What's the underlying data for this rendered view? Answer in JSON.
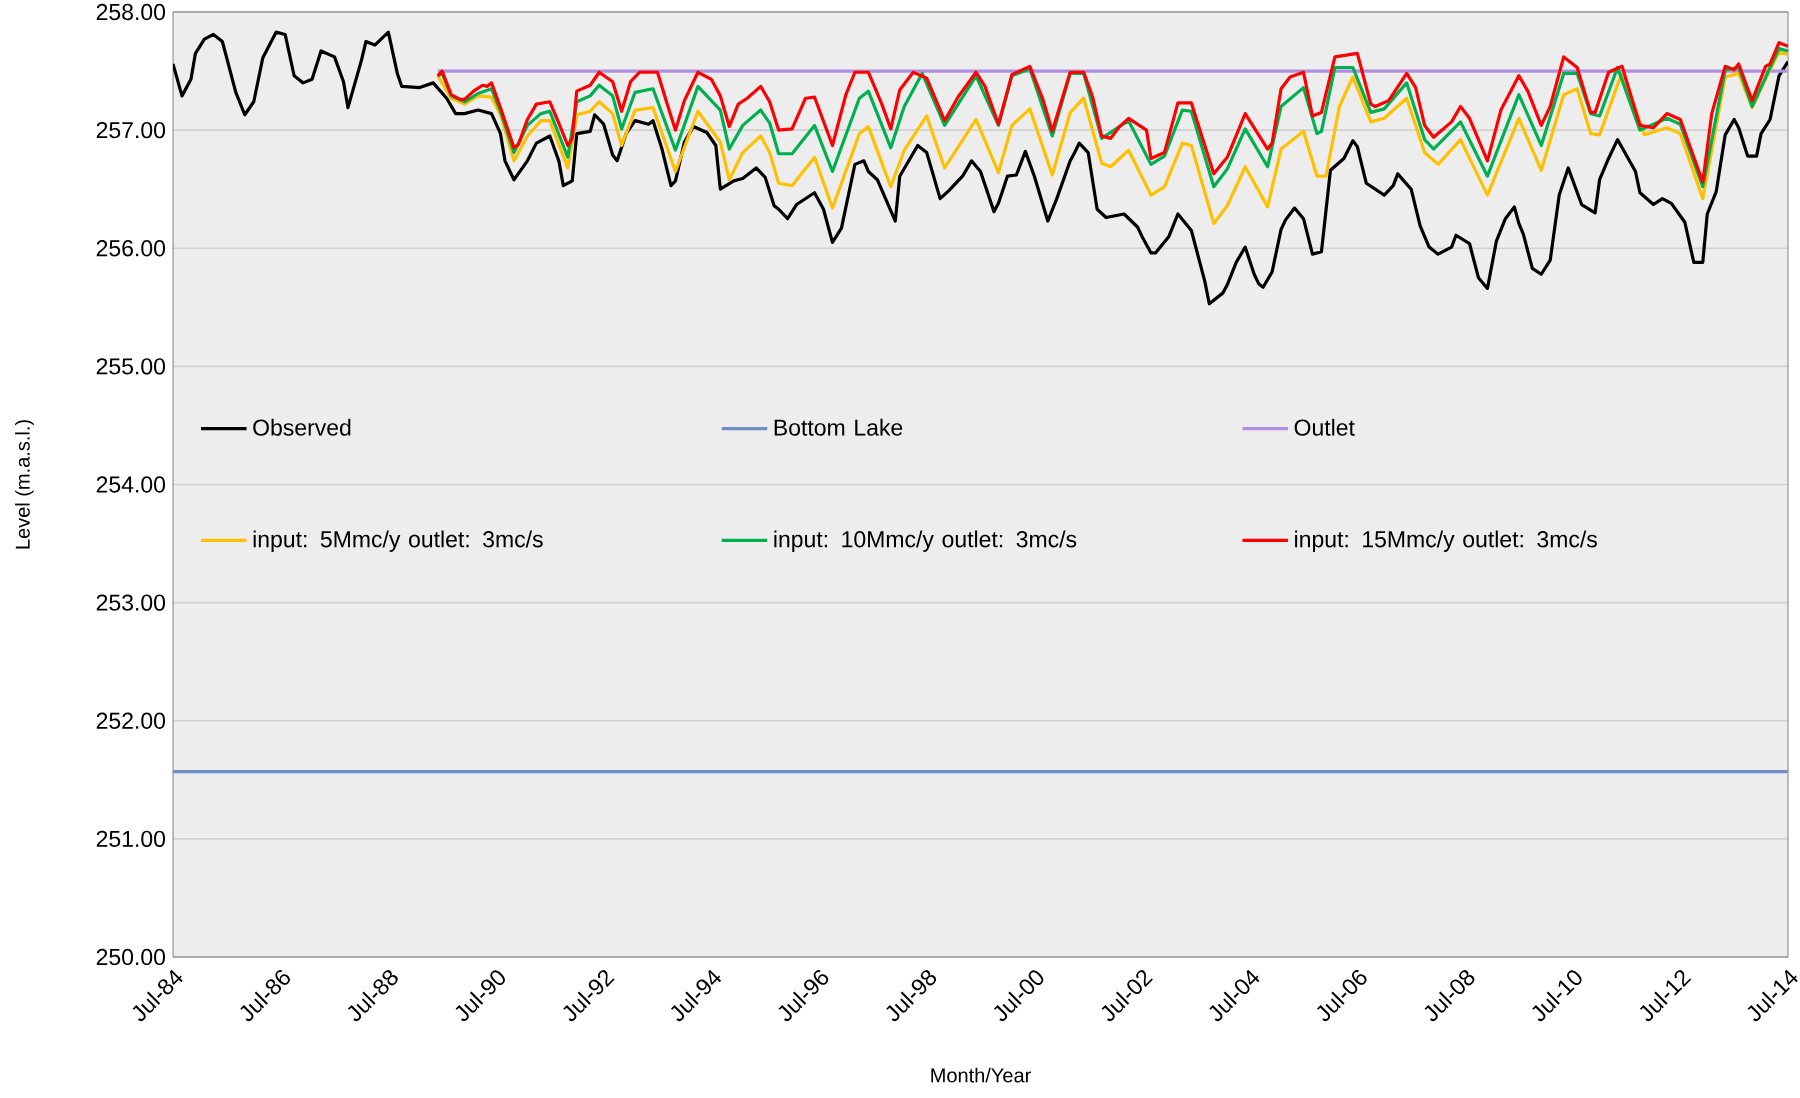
{
  "chart_data": {
    "type": "line",
    "xlabel": "Month/Year",
    "ylabel": "Level (m.a.s.l.)",
    "xlim": [
      "1984-07",
      "2014-07"
    ],
    "ylim": [
      250,
      258
    ],
    "xticks": [
      {
        "value": "1984-07",
        "label": "Jul-84"
      },
      {
        "value": "1986-07",
        "label": "Jul-86"
      },
      {
        "value": "1988-07",
        "label": "Jul-88"
      },
      {
        "value": "1990-07",
        "label": "Jul-90"
      },
      {
        "value": "1992-07",
        "label": "Jul-92"
      },
      {
        "value": "1994-07",
        "label": "Jul-94"
      },
      {
        "value": "1996-07",
        "label": "Jul-96"
      },
      {
        "value": "1998-07",
        "label": "Jul-98"
      },
      {
        "value": "2000-07",
        "label": "Jul-00"
      },
      {
        "value": "2002-07",
        "label": "Jul-02"
      },
      {
        "value": "2004-07",
        "label": "Jul-04"
      },
      {
        "value": "2006-07",
        "label": "Jul-06"
      },
      {
        "value": "2008-07",
        "label": "Jul-08"
      },
      {
        "value": "2010-07",
        "label": "Jul-10"
      },
      {
        "value": "2012-07",
        "label": "Jul-12"
      },
      {
        "value": "2014-07",
        "label": "Jul-14"
      }
    ],
    "yticks": [
      {
        "value": 250,
        "label": "250.00"
      },
      {
        "value": 251,
        "label": "251.00"
      },
      {
        "value": 252,
        "label": "252.00"
      },
      {
        "value": 253,
        "label": "253.00"
      },
      {
        "value": 254,
        "label": "254.00"
      },
      {
        "value": 255,
        "label": "255.00"
      },
      {
        "value": 256,
        "label": "256.00"
      },
      {
        "value": 257,
        "label": "257.00"
      },
      {
        "value": 258,
        "label": "258.00"
      }
    ],
    "grid": "y",
    "legend": "center",
    "marker": "none",
    "line_style": "solid",
    "series": [
      {
        "name": "Observed",
        "color": "#000000",
        "x": [
          "1984-07",
          "1984-09",
          "1984-11",
          "1984-12",
          "1985-02",
          "1985-04",
          "1985-06",
          "1985-09",
          "1985-11",
          "1986-01",
          "1986-03",
          "1986-06",
          "1986-08",
          "1986-10",
          "1986-12",
          "1987-02",
          "1987-04",
          "1987-07",
          "1987-09",
          "1987-10",
          "1988-01",
          "1988-02",
          "1988-04",
          "1988-07",
          "1988-09",
          "1988-10",
          "1989-02",
          "1989-05",
          "1989-08",
          "1989-10",
          "1989-12",
          "1990-03",
          "1990-06",
          "1990-08",
          "1990-09",
          "1990-11",
          "1991-02",
          "1991-04",
          "1991-07",
          "1991-09",
          "1991-10",
          "1991-12",
          "1992-01",
          "1992-04",
          "1992-05",
          "1992-07",
          "1992-09",
          "1992-10",
          "1992-12",
          "1993-02",
          "1993-05",
          "1993-06",
          "1993-08",
          "1993-10",
          "1993-11",
          "1994-01",
          "1994-03",
          "1994-06",
          "1994-08",
          "1994-09",
          "1994-12",
          "1995-02",
          "1995-05",
          "1995-07",
          "1995-09",
          "1995-10",
          "1995-12",
          "1996-02",
          "1996-06",
          "1996-08",
          "1996-10",
          "1996-12",
          "1997-03",
          "1997-05",
          "1997-06",
          "1997-08",
          "1997-12",
          "1998-01",
          "1998-03",
          "1998-05",
          "1998-07",
          "1998-10",
          "1998-12",
          "1999-03",
          "1999-05",
          "1999-07",
          "1999-10",
          "1999-11",
          "2000-01",
          "2000-03",
          "2000-05",
          "2000-07",
          "2000-10",
          "2000-12",
          "2001-03",
          "2001-04",
          "2001-05",
          "2001-07",
          "2001-09",
          "2001-11",
          "2002-03",
          "2002-06",
          "2002-07",
          "2002-09",
          "2002-10",
          "2003-01",
          "2003-03",
          "2003-06",
          "2003-09",
          "2003-10",
          "2004-01",
          "2004-02",
          "2004-04",
          "2004-06",
          "2004-08",
          "2004-09",
          "2004-10",
          "2004-12",
          "2005-02",
          "2005-03",
          "2005-05",
          "2005-07",
          "2005-09",
          "2005-11",
          "2006-01",
          "2006-04",
          "2006-06",
          "2006-07",
          "2006-09",
          "2006-11",
          "2007-01",
          "2007-03",
          "2007-04",
          "2007-07",
          "2007-09",
          "2007-11",
          "2008-01",
          "2008-04",
          "2008-05",
          "2008-08",
          "2008-10",
          "2008-12",
          "2009-02",
          "2009-04",
          "2009-06",
          "2009-07",
          "2009-08",
          "2009-10",
          "2009-12",
          "2010-02",
          "2010-04",
          "2010-06",
          "2010-09",
          "2010-12",
          "2011-01",
          "2011-03",
          "2011-05",
          "2011-09",
          "2011-10",
          "2012-01",
          "2012-03",
          "2012-05",
          "2012-08",
          "2012-10",
          "2012-12",
          "2013-01",
          "2013-03",
          "2013-05",
          "2013-07",
          "2013-08",
          "2013-10",
          "2013-12",
          "2014-01",
          "2014-03",
          "2014-05",
          "2014-07"
        ],
        "values": [
          257.56,
          257.29,
          257.43,
          257.65,
          257.77,
          257.81,
          257.75,
          257.32,
          257.13,
          257.24,
          257.61,
          257.83,
          257.81,
          257.46,
          257.4,
          257.43,
          257.67,
          257.62,
          257.41,
          257.19,
          257.59,
          257.75,
          257.72,
          257.83,
          257.48,
          257.37,
          257.36,
          257.4,
          257.27,
          257.14,
          257.14,
          257.17,
          257.14,
          256.97,
          256.74,
          256.58,
          256.74,
          256.89,
          256.95,
          256.74,
          256.53,
          256.57,
          256.97,
          256.99,
          257.13,
          257.05,
          256.79,
          256.74,
          256.97,
          257.08,
          257.05,
          257.08,
          256.84,
          256.53,
          256.57,
          256.9,
          257.03,
          256.98,
          256.87,
          256.5,
          256.57,
          256.59,
          256.68,
          256.6,
          256.36,
          256.33,
          256.25,
          256.37,
          256.47,
          256.33,
          256.05,
          256.17,
          256.71,
          256.74,
          256.65,
          256.58,
          256.23,
          256.61,
          256.74,
          256.87,
          256.81,
          256.42,
          256.49,
          256.61,
          256.74,
          256.65,
          256.31,
          256.38,
          256.61,
          256.62,
          256.82,
          256.61,
          256.23,
          256.42,
          256.74,
          256.81,
          256.89,
          256.81,
          256.33,
          256.26,
          256.29,
          256.18,
          256.1,
          255.96,
          255.96,
          256.1,
          256.29,
          256.15,
          255.72,
          255.53,
          255.62,
          255.69,
          255.88,
          256.01,
          255.78,
          255.7,
          255.67,
          255.8,
          256.16,
          256.24,
          256.34,
          256.25,
          255.95,
          255.97,
          256.66,
          256.76,
          256.91,
          256.86,
          256.55,
          256.5,
          256.45,
          256.53,
          256.63,
          256.5,
          256.19,
          256.01,
          255.95,
          256.01,
          256.11,
          256.04,
          255.75,
          255.66,
          256.06,
          256.25,
          256.35,
          256.21,
          256.12,
          255.83,
          255.78,
          255.9,
          256.45,
          256.68,
          256.37,
          256.3,
          256.58,
          256.76,
          256.92,
          256.65,
          256.47,
          256.37,
          256.42,
          256.38,
          256.22,
          255.88,
          255.88,
          256.29,
          256.48,
          256.96,
          257.09,
          257.02,
          256.78,
          256.78,
          256.97,
          257.09,
          257.46,
          257.58
        ]
      },
      {
        "name": "Bottom Lake",
        "color": "#6f8fc4",
        "x": [
          "1984-07",
          "2014-07"
        ],
        "values": [
          251.57,
          251.57
        ]
      },
      {
        "name": "Outlet",
        "color": "#b08ee0",
        "x": [
          "1989-06",
          "2014-07"
        ],
        "values": [
          257.5,
          257.5
        ]
      },
      {
        "name": "input: 5Mmc/y outlet: 3mc/s",
        "color": "#ffc000",
        "x": [
          "1989-06",
          "1989-09",
          "1989-12",
          "1990-03",
          "1990-06",
          "1990-08",
          "1990-11",
          "1991-02",
          "1991-05",
          "1991-07",
          "1991-11",
          "1992-01",
          "1992-04",
          "1992-06",
          "1992-09",
          "1992-11",
          "1993-02",
          "1993-06",
          "1993-11",
          "1994-04",
          "1994-09",
          "1994-11",
          "1995-02",
          "1995-06",
          "1995-08",
          "1995-10",
          "1996-01",
          "1996-06",
          "1996-10",
          "1997-04",
          "1997-06",
          "1997-11",
          "1998-02",
          "1998-07",
          "1998-11",
          "1999-06",
          "1999-11",
          "2000-02",
          "2000-06",
          "2000-11",
          "2001-03",
          "2001-06",
          "2001-10",
          "2001-12",
          "2002-04",
          "2002-09",
          "2002-12",
          "2003-04",
          "2003-06",
          "2003-11",
          "2004-02",
          "2004-06",
          "2004-11",
          "2005-02",
          "2005-07",
          "2005-10",
          "2005-12",
          "2006-03",
          "2006-06",
          "2006-10",
          "2007-01",
          "2007-06",
          "2007-10",
          "2008-01",
          "2008-06",
          "2008-12",
          "2009-07",
          "2009-12",
          "2010-05",
          "2010-08",
          "2010-11",
          "2011-01",
          "2011-06",
          "2011-11",
          "2012-04",
          "2012-07",
          "2012-12",
          "2013-05",
          "2013-08",
          "2013-11",
          "2014-03",
          "2014-05",
          "2014-07"
        ],
        "values": [
          257.46,
          257.27,
          257.22,
          257.29,
          257.28,
          257.13,
          256.74,
          256.95,
          257.08,
          257.08,
          256.68,
          257.13,
          257.16,
          257.24,
          257.14,
          256.87,
          257.17,
          257.19,
          256.65,
          257.16,
          256.9,
          256.58,
          256.81,
          256.95,
          256.81,
          256.55,
          256.53,
          256.77,
          256.34,
          256.97,
          257.03,
          256.52,
          256.83,
          257.12,
          256.68,
          257.09,
          256.64,
          257.04,
          257.18,
          256.62,
          257.15,
          257.27,
          256.72,
          256.69,
          256.83,
          256.45,
          256.52,
          256.89,
          256.87,
          256.21,
          256.36,
          256.69,
          256.35,
          256.84,
          256.99,
          256.61,
          256.61,
          257.2,
          257.45,
          257.07,
          257.1,
          257.27,
          256.81,
          256.71,
          256.92,
          256.45,
          257.1,
          256.66,
          257.3,
          257.35,
          256.97,
          256.96,
          257.49,
          256.96,
          257.02,
          256.97,
          256.42,
          257.45,
          257.48,
          257.19,
          257.51,
          257.66,
          257.64
        ]
      },
      {
        "name": "input: 10Mmc/y outlet: 3mc/s",
        "color": "#00b050",
        "x": [
          "1989-06",
          "1989-07",
          "1989-09",
          "1989-12",
          "1990-03",
          "1990-06",
          "1990-08",
          "1990-11",
          "1991-02",
          "1991-05",
          "1991-07",
          "1991-11",
          "1992-01",
          "1992-04",
          "1992-06",
          "1992-09",
          "1992-11",
          "1993-02",
          "1993-06",
          "1993-11",
          "1994-04",
          "1994-09",
          "1994-11",
          "1995-02",
          "1995-06",
          "1995-08",
          "1995-10",
          "1996-01",
          "1996-06",
          "1996-10",
          "1997-04",
          "1997-06",
          "1997-11",
          "1998-02",
          "1998-06",
          "1998-11",
          "1999-06",
          "1999-11",
          "2000-02",
          "2000-06",
          "2000-11",
          "2001-03",
          "2001-06",
          "2001-10",
          "2002-04",
          "2002-09",
          "2002-12",
          "2003-04",
          "2003-06",
          "2003-11",
          "2004-02",
          "2004-06",
          "2004-11",
          "2005-02",
          "2005-07",
          "2005-10",
          "2005-11",
          "2006-02",
          "2006-06",
          "2006-10",
          "2007-01",
          "2007-06",
          "2007-10",
          "2007-12",
          "2008-06",
          "2008-12",
          "2009-07",
          "2009-12",
          "2010-05",
          "2010-08",
          "2010-11",
          "2011-01",
          "2011-05",
          "2011-10",
          "2012-04",
          "2012-07",
          "2012-12",
          "2013-05",
          "2013-08",
          "2013-11",
          "2014-03",
          "2014-05",
          "2014-07"
        ],
        "values": [
          257.46,
          257.48,
          257.29,
          257.24,
          257.31,
          257.35,
          257.16,
          256.81,
          257.04,
          257.14,
          257.16,
          256.77,
          257.24,
          257.29,
          257.38,
          257.29,
          257.01,
          257.32,
          257.35,
          256.83,
          257.37,
          257.17,
          256.84,
          257.04,
          257.17,
          257.06,
          256.8,
          256.8,
          257.04,
          256.65,
          257.27,
          257.33,
          256.85,
          257.2,
          257.48,
          257.04,
          257.46,
          257.04,
          257.46,
          257.52,
          256.95,
          257.48,
          257.48,
          256.93,
          257.08,
          256.71,
          256.78,
          257.17,
          257.16,
          256.52,
          256.67,
          257.01,
          256.69,
          257.2,
          257.36,
          256.97,
          256.99,
          257.53,
          257.53,
          257.15,
          257.18,
          257.4,
          256.92,
          256.84,
          257.07,
          256.61,
          257.3,
          256.87,
          257.48,
          257.48,
          257.14,
          257.12,
          257.53,
          257.0,
          257.1,
          257.05,
          256.52,
          257.51,
          257.53,
          257.2,
          257.53,
          257.69,
          257.67
        ]
      },
      {
        "name": "input: 15Mmc/y outlet: 3mc/s",
        "color": "#ff0000",
        "x": [
          "1989-06",
          "1989-07",
          "1989-09",
          "1989-11",
          "1989-12",
          "1990-02",
          "1990-04",
          "1990-05",
          "1990-06",
          "1990-08",
          "1990-11",
          "1990-12",
          "1991-02",
          "1991-04",
          "1991-07",
          "1991-09",
          "1991-11",
          "1991-12",
          "1992-01",
          "1992-04",
          "1992-06",
          "1992-09",
          "1992-11",
          "1993-01",
          "1993-03",
          "1993-07",
          "1993-09",
          "1993-11",
          "1994-01",
          "1994-04",
          "1994-07",
          "1994-09",
          "1994-11",
          "1995-01",
          "1995-03",
          "1995-06",
          "1995-08",
          "1995-10",
          "1996-01",
          "1996-04",
          "1996-06",
          "1996-10",
          "1997-01",
          "1997-03",
          "1997-06",
          "1997-09",
          "1997-11",
          "1998-01",
          "1998-04",
          "1998-07",
          "1998-11",
          "1999-02",
          "1999-06",
          "1999-08",
          "1999-11",
          "2000-02",
          "2000-06",
          "2000-09",
          "2000-11",
          "2001-03",
          "2001-06",
          "2001-08",
          "2001-10",
          "2001-12",
          "2002-02",
          "2002-04",
          "2002-08",
          "2002-09",
          "2002-12",
          "2003-03",
          "2003-06",
          "2003-09",
          "2003-11",
          "2004-02",
          "2004-06",
          "2004-11",
          "2004-12",
          "2005-02",
          "2005-04",
          "2005-07",
          "2005-09",
          "2005-11",
          "2006-02",
          "2006-07",
          "2006-10",
          "2006-11",
          "2007-02",
          "2007-06",
          "2007-08",
          "2007-10",
          "2007-12",
          "2008-04",
          "2008-06",
          "2008-08",
          "2008-12",
          "2009-03",
          "2009-07",
          "2009-09",
          "2009-12",
          "2010-02",
          "2010-05",
          "2010-08",
          "2010-11",
          "2010-12",
          "2011-03",
          "2011-06",
          "2011-10",
          "2012-01",
          "2012-04",
          "2012-07",
          "2012-12",
          "2013-02",
          "2013-05",
          "2013-07",
          "2013-08",
          "2013-11",
          "2014-02",
          "2014-03",
          "2014-05",
          "2014-07"
        ],
        "values": [
          257.46,
          257.5,
          257.3,
          257.26,
          257.26,
          257.33,
          257.38,
          257.37,
          257.4,
          257.19,
          256.85,
          256.88,
          257.09,
          257.22,
          257.24,
          257.06,
          256.87,
          256.93,
          257.33,
          257.38,
          257.49,
          257.41,
          257.16,
          257.41,
          257.49,
          257.49,
          257.24,
          257.0,
          257.25,
          257.49,
          257.43,
          257.29,
          257.03,
          257.22,
          257.27,
          257.37,
          257.24,
          257.0,
          257.01,
          257.27,
          257.28,
          256.87,
          257.3,
          257.49,
          257.49,
          257.22,
          257.01,
          257.34,
          257.49,
          257.44,
          257.08,
          257.28,
          257.49,
          257.37,
          257.05,
          257.47,
          257.54,
          257.25,
          256.99,
          257.49,
          257.49,
          257.28,
          256.95,
          256.93,
          257.03,
          257.1,
          257.0,
          256.76,
          256.81,
          257.23,
          257.23,
          256.87,
          256.63,
          256.77,
          257.14,
          256.84,
          256.89,
          257.35,
          257.45,
          257.49,
          257.12,
          257.15,
          257.62,
          257.65,
          257.22,
          257.2,
          257.25,
          257.48,
          257.36,
          257.04,
          256.94,
          257.07,
          257.2,
          257.1,
          256.74,
          257.17,
          257.46,
          257.33,
          257.04,
          257.2,
          257.62,
          257.53,
          257.15,
          257.15,
          257.49,
          257.54,
          257.04,
          257.02,
          257.14,
          257.09,
          256.56,
          257.14,
          257.54,
          257.51,
          257.56,
          257.25,
          257.54,
          257.56,
          257.74,
          257.71
        ]
      }
    ]
  }
}
